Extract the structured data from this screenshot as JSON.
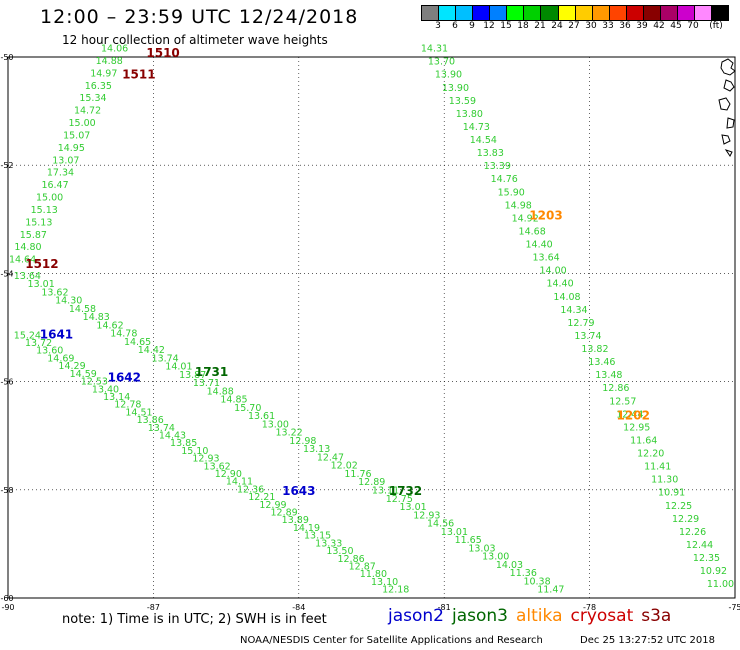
{
  "title": "12:00 – 23:59 UTC 12/24/2018",
  "subtitle": "12 hour collection of altimeter wave heights",
  "legend": {
    "colors": [
      "#7f7f7f",
      "#00e5ff",
      "#00bfff",
      "#0000ff",
      "#0080ff",
      "#00ff00",
      "#00d000",
      "#008800",
      "#ffff00",
      "#ffcc00",
      "#ff9900",
      "#ff4400",
      "#cc0000",
      "#880000",
      "#aa0066",
      "#cc00cc",
      "#ff88ff",
      "#000000"
    ],
    "labels": [
      "3",
      "6",
      "9",
      "12",
      "15",
      "18",
      "21",
      "24",
      "27",
      "30",
      "33",
      "36",
      "39",
      "42",
      "45",
      "70",
      "(ft)"
    ]
  },
  "map": {
    "lon_range": [
      -90,
      -75
    ],
    "lat_range": [
      -60,
      -50
    ],
    "lon_ticks": [
      "-90",
      "-87",
      "-84",
      "-81",
      "-78",
      "-75"
    ],
    "lat_ticks": [
      "-50",
      "-52",
      "-54",
      "-56",
      "-58",
      "-60"
    ]
  },
  "satellite_colors": {
    "jason2": "#0000cc",
    "jason3": "#006600",
    "altika": "#ff8800",
    "cryosat": "#cc0000",
    "s3a": "#880000",
    "light": "#33cc33"
  },
  "pass_labels": [
    {
      "text": "1510",
      "lon": -86.8,
      "lat": -50.0,
      "sat": "s3a"
    },
    {
      "text": "1511",
      "lon": -87.3,
      "lat": -50.4,
      "sat": "s3a"
    },
    {
      "text": "1512",
      "lon": -89.3,
      "lat": -53.9,
      "sat": "s3a"
    },
    {
      "text": "1641",
      "lon": -89.0,
      "lat": -55.2,
      "sat": "jason2"
    },
    {
      "text": "1642",
      "lon": -87.6,
      "lat": -56.0,
      "sat": "jason2"
    },
    {
      "text": "1731",
      "lon": -85.8,
      "lat": -55.9,
      "sat": "jason3"
    },
    {
      "text": "1203",
      "lon": -78.9,
      "lat": -53.0,
      "sat": "altika"
    },
    {
      "text": "1202",
      "lon": -77.1,
      "lat": -56.7,
      "sat": "altika"
    },
    {
      "text": "1643",
      "lon": -84.0,
      "lat": -58.1,
      "sat": "jason2"
    },
    {
      "text": "1732",
      "lon": -81.8,
      "lat": -58.1,
      "sat": "jason3"
    }
  ],
  "tracks": [
    {
      "sat": "light",
      "start": [
        -87.8,
        -49.9
      ],
      "end": [
        -89.7,
        -53.8
      ],
      "values": [
        "14.06",
        "14.88",
        "14.97",
        "16.35",
        "15.34",
        "14.72",
        "15.00",
        "15.07",
        "14.95",
        "13.07",
        "17.34",
        "16.47",
        "15.00",
        "15.13",
        "15.13",
        "15.87",
        "14.80",
        "14.64"
      ]
    },
    {
      "sat": "light",
      "start": [
        -81.2,
        -49.9
      ],
      "end": [
        -75.3,
        -59.8
      ],
      "values": [
        "14.31",
        "13.70",
        "13.90",
        "13.90",
        "13.59",
        "13.80",
        "14.73",
        "14.54",
        "13.83",
        "13.39",
        "14.76",
        "15.90",
        "14.98",
        "14.92",
        "14.68",
        "14.40",
        "13.64",
        "14.00",
        "14.40",
        "14.08",
        "14.34",
        "12.79",
        "13.74",
        "13.82",
        "13.46",
        "13.48",
        "12.86",
        "12.57",
        "12.44",
        "12.95",
        "11.64",
        "12.20",
        "11.41",
        "11.30",
        "10.91",
        "12.25",
        "12.29",
        "12.26",
        "12.44",
        "12.35",
        "10.92",
        "11.00"
      ]
    },
    {
      "sat": "light",
      "start": [
        -89.6,
        -54.1
      ],
      "end": [
        -78.8,
        -59.9
      ],
      "values": [
        "13.64",
        "13.01",
        "13.62",
        "14.30",
        "14.58",
        "14.83",
        "14.62",
        "14.78",
        "14.65",
        "14.42",
        "13.74",
        "14.01",
        "13.87",
        "13.71",
        "14.88",
        "14.85",
        "15.70",
        "13.61",
        "13.00",
        "13.22",
        "12.98",
        "13.13",
        "12.47",
        "12.02",
        "11.76",
        "12.89",
        "13.11",
        "12.75",
        "13.01",
        "12.93",
        "14.56",
        "13.01",
        "11.65",
        "13.03",
        "13.00",
        "14.03",
        "11.36",
        "10.38",
        "11.47"
      ]
    },
    {
      "sat": "light",
      "start": [
        -89.6,
        -55.2
      ],
      "end": [
        -82.0,
        -59.9
      ],
      "values": [
        "15.24",
        "13.72",
        "13.60",
        "14.69",
        "14.29",
        "14.59",
        "12.53",
        "13.40",
        "13.14",
        "12.78",
        "14.51",
        "13.86",
        "13.74",
        "14.43",
        "13.85",
        "15.10",
        "12.93",
        "13.62",
        "12.90",
        "14.11",
        "12.36",
        "12.21",
        "12.99",
        "12.89",
        "13.89",
        "14.19",
        "13.15",
        "13.33",
        "13.50",
        "12.86",
        "12.87",
        "11.80",
        "13.10",
        "12.18"
      ]
    }
  ],
  "footer": {
    "note": "note: 1) Time is in UTC; 2) SWH is in feet",
    "satellites": [
      {
        "name": "jason2",
        "sat": "jason2"
      },
      {
        "name": "jason3",
        "sat": "jason3"
      },
      {
        "name": "altika",
        "sat": "altika"
      },
      {
        "name": "cryosat",
        "sat": "cryosat"
      },
      {
        "name": "s3a",
        "sat": "s3a"
      }
    ],
    "credit": "NOAA/NESDIS Center for Satellite Applications and Research",
    "timestamp": "Dec 25 13:27:52 UTC 2018"
  }
}
